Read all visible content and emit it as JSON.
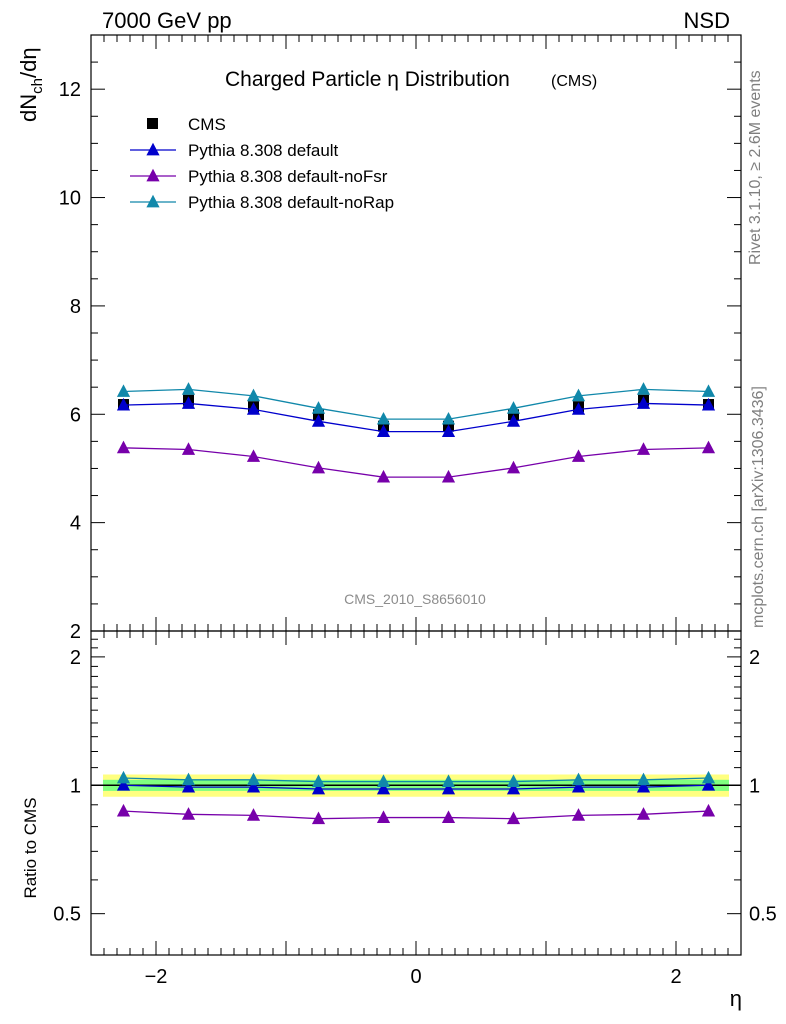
{
  "header": {
    "left": "7000 GeV pp",
    "right": "NSD"
  },
  "side_text": {
    "top": "Rivet 3.1.10, ≥ 2.6M events",
    "bottom": "mcplots.cern.ch [arXiv:1306.3436]"
  },
  "watermark": "CMS_2010_S8656010",
  "chart_data": [
    {
      "type": "line",
      "title": "Charged Particle η Distribution",
      "title_suffix": "(CMS)",
      "ylabel": "dN_ch/dη",
      "ylim": [
        2,
        13
      ],
      "yticks": [
        2,
        4,
        6,
        8,
        10,
        12
      ],
      "xlim": [
        -2.5,
        2.5
      ],
      "legend_position": "top-left",
      "x": [
        -2.25,
        -1.75,
        -1.25,
        -0.75,
        -0.25,
        0.25,
        0.75,
        1.25,
        1.75,
        2.25
      ],
      "series": [
        {
          "name": "CMS",
          "marker": "square",
          "color": "#000000",
          "values": [
            6.18,
            6.26,
            6.14,
            5.99,
            5.78,
            5.78,
            5.99,
            6.14,
            6.26,
            6.18
          ]
        },
        {
          "name": "Pythia 8.308 default",
          "marker": "triangle",
          "color": "#0000cc",
          "values": [
            6.17,
            6.2,
            6.09,
            5.87,
            5.68,
            5.68,
            5.87,
            6.09,
            6.2,
            6.17
          ]
        },
        {
          "name": "Pythia 8.308 default-noFsr",
          "marker": "triangle",
          "color": "#7700aa",
          "values": [
            5.38,
            5.35,
            5.22,
            5.01,
            4.84,
            4.84,
            5.01,
            5.22,
            5.35,
            5.38
          ]
        },
        {
          "name": "Pythia 8.308 default-noRap",
          "marker": "triangle",
          "color": "#1188aa",
          "values": [
            6.42,
            6.46,
            6.34,
            6.11,
            5.91,
            5.91,
            6.11,
            6.34,
            6.46,
            6.42
          ]
        }
      ]
    },
    {
      "type": "line",
      "ylabel": "Ratio to CMS",
      "xlabel": "η",
      "ylim": [
        0.4,
        2.3
      ],
      "yticks": [
        0.5,
        1,
        2
      ],
      "xlim": [
        -2.5,
        2.5
      ],
      "xticks": [
        -2,
        0,
        2
      ],
      "x": [
        -2.25,
        -1.75,
        -1.25,
        -0.75,
        -0.25,
        0.25,
        0.75,
        1.25,
        1.75,
        2.25
      ],
      "bands": [
        {
          "color": "#ffff80",
          "lo": 0.94,
          "hi": 1.06
        },
        {
          "color": "#80ff80",
          "lo": 0.97,
          "hi": 1.03
        }
      ],
      "series": [
        {
          "name": "Pythia 8.308 default",
          "color": "#0000cc",
          "values": [
            1.0,
            0.99,
            0.99,
            0.98,
            0.98,
            0.98,
            0.98,
            0.99,
            0.99,
            1.0
          ]
        },
        {
          "name": "Pythia 8.308 default-noFsr",
          "color": "#7700aa",
          "values": [
            0.87,
            0.855,
            0.85,
            0.835,
            0.84,
            0.84,
            0.835,
            0.85,
            0.855,
            0.87
          ]
        },
        {
          "name": "Pythia 8.308 default-noRap",
          "color": "#1188aa",
          "values": [
            1.04,
            1.03,
            1.03,
            1.02,
            1.02,
            1.02,
            1.02,
            1.03,
            1.03,
            1.04
          ]
        }
      ]
    }
  ]
}
